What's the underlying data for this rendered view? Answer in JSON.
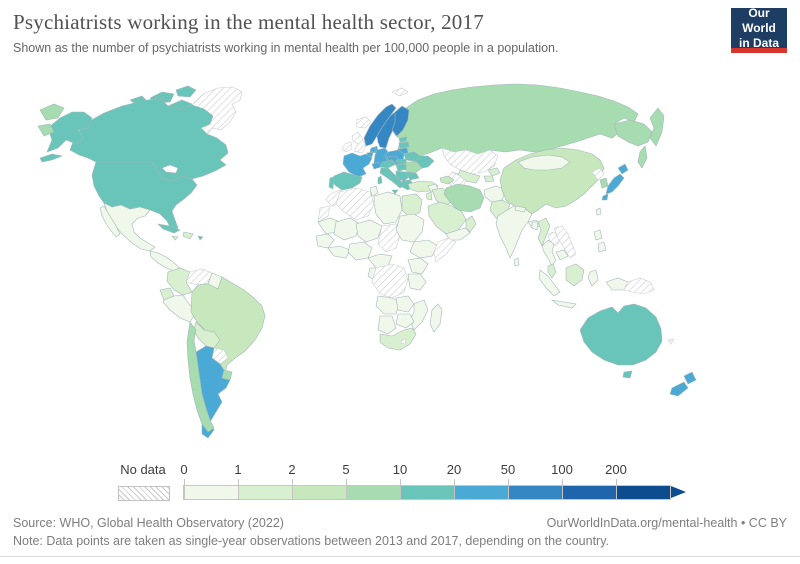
{
  "header": {
    "title": "Psychiatrists working in the mental health sector, 2017",
    "subtitle": "Shown as the number of psychiatrists working in mental health per 100,000 people in a population."
  },
  "logo": {
    "line1": "Our World",
    "line2": "in Data",
    "bg_color": "#1d3d63",
    "accent_color": "#d8352f"
  },
  "footer": {
    "source": "Source: WHO, Global Health Observatory (2022)",
    "link": "OurWorldInData.org/mental-health • CC BY",
    "note": "Note: Data points are taken as single-year observations between 2013 and 2017, depending on the country."
  },
  "chart_data": {
    "type": "choropleth_map",
    "title": "Psychiatrists working in the mental health sector, 2017",
    "unit": "psychiatrists working in mental health per 100,000 people",
    "legend": {
      "no_data_label": "No data",
      "no_data_pattern": "diagonal-hatch",
      "ticks": [
        "0",
        "1",
        "2",
        "5",
        "10",
        "20",
        "50",
        "100",
        "200"
      ],
      "colors": [
        "#eff8ea",
        "#d8efd0",
        "#c7e8bd",
        "#a7dcb0",
        "#69c5ba",
        "#4aaad5",
        "#3587c4",
        "#1e65ab",
        "#0d4d8f"
      ],
      "border_color": "#c6c6c6"
    },
    "countries": {
      "canada": "10-20",
      "united-states": "10-20",
      "greenland": "no-data",
      "mexico": "0-1",
      "cuba": "10-20",
      "jamaica": "1-2",
      "haiti-dominican-republic": "1-2",
      "puerto-rico": "10-20",
      "guatemala-central-america": "0-1",
      "colombia": "1-2",
      "venezuela": "no-data",
      "guyana-suriname": "0-1",
      "ecuador": "1-2",
      "peru": "0-1",
      "bolivia": "1-2",
      "brazil": "2-5",
      "paraguay": "no-data",
      "uruguay": "5-10",
      "chile": "5-10",
      "argentina": "20-50",
      "iceland": "no-data",
      "united-kingdom": "no-data",
      "ireland": "no-data",
      "norway": "50-100",
      "sweden": "50-100",
      "finland": "50-100",
      "denmark": "20-50",
      "estonia": "10-20",
      "latvia": "10-20",
      "lithuania": "20-50",
      "belarus": "10-20",
      "poland": "20-50",
      "germany": "20-50",
      "netherlands": "20-50",
      "belgium": "20-50",
      "france": "20-50",
      "switzerland": "20-50",
      "austria": "10-20",
      "czechia": "20-50",
      "slovakia": "10-20",
      "hungary": "10-20",
      "romania": "5-10",
      "ukraine": "10-20",
      "serbia-balkans": "10-20",
      "bulgaria": "10-20",
      "greece": "10-20",
      "italy": "10-20",
      "spain": "10-20",
      "portugal": "10-20",
      "turkey": "1-2",
      "russia": "5-10",
      "kazakhstan": "no-data",
      "uzbekistan": "1-2",
      "turkmenistan": "no-data",
      "kyrgyzstan": "1-2",
      "tajikistan": "1-2",
      "georgia-azerbaijan": "2-5",
      "iran": "5-10",
      "iraq": "1-2",
      "syria": "0-1",
      "israel-jordan": "1-2",
      "saudi-arabia": "1-2",
      "yemen": "0-1",
      "oman": "1-2",
      "afghanistan": "0-1",
      "pakistan": "1-2",
      "india": "0-1",
      "nepal": "0-1",
      "bangladesh": "0-1",
      "sri-lanka": "0-1",
      "myanmar": "1-2",
      "china": "2-5",
      "mongolia": "0-1",
      "taiwan": "0-1",
      "north-korea": "no-data",
      "south-korea": "5-10",
      "japan": "20-50",
      "thailand": "0-1",
      "laos": "no-data",
      "vietnam": "no-data",
      "cambodia": "0-1",
      "malaysia": "1-2",
      "indonesia": "0-1",
      "philippines": "0-1",
      "papua-new-guinea": "no-data",
      "australia": "10-20",
      "new-zealand": "20-50",
      "new-caledonia": "no-data",
      "morocco": "no-data",
      "western-sahara": "no-data",
      "algeria": "no-data",
      "tunisia": "0-1",
      "libya": "0-1",
      "egypt": "1-2",
      "mauritania": "0-1",
      "mali": "0-1",
      "niger": "0-1",
      "chad": "no-data",
      "sudan": "0-1",
      "ethiopia": "0-1",
      "somalia": "no-data",
      "senegal-guinea": "0-1",
      "ghana-ivory-coast": "0-1",
      "nigeria": "0-1",
      "cameroon-car": "0-1",
      "gabon-congo": "0-1",
      "drc": "no-data",
      "uganda-kenya": "0-1",
      "tanzania": "0-1",
      "angola": "0-1",
      "zambia": "0-1",
      "mozambique": "0-1",
      "zimbabwe-botswana": "0-1",
      "namibia": "0-1",
      "south-africa": "1-2",
      "lesotho": "no-data",
      "madagascar": "0-1",
      "svalbard": "no-data"
    }
  }
}
